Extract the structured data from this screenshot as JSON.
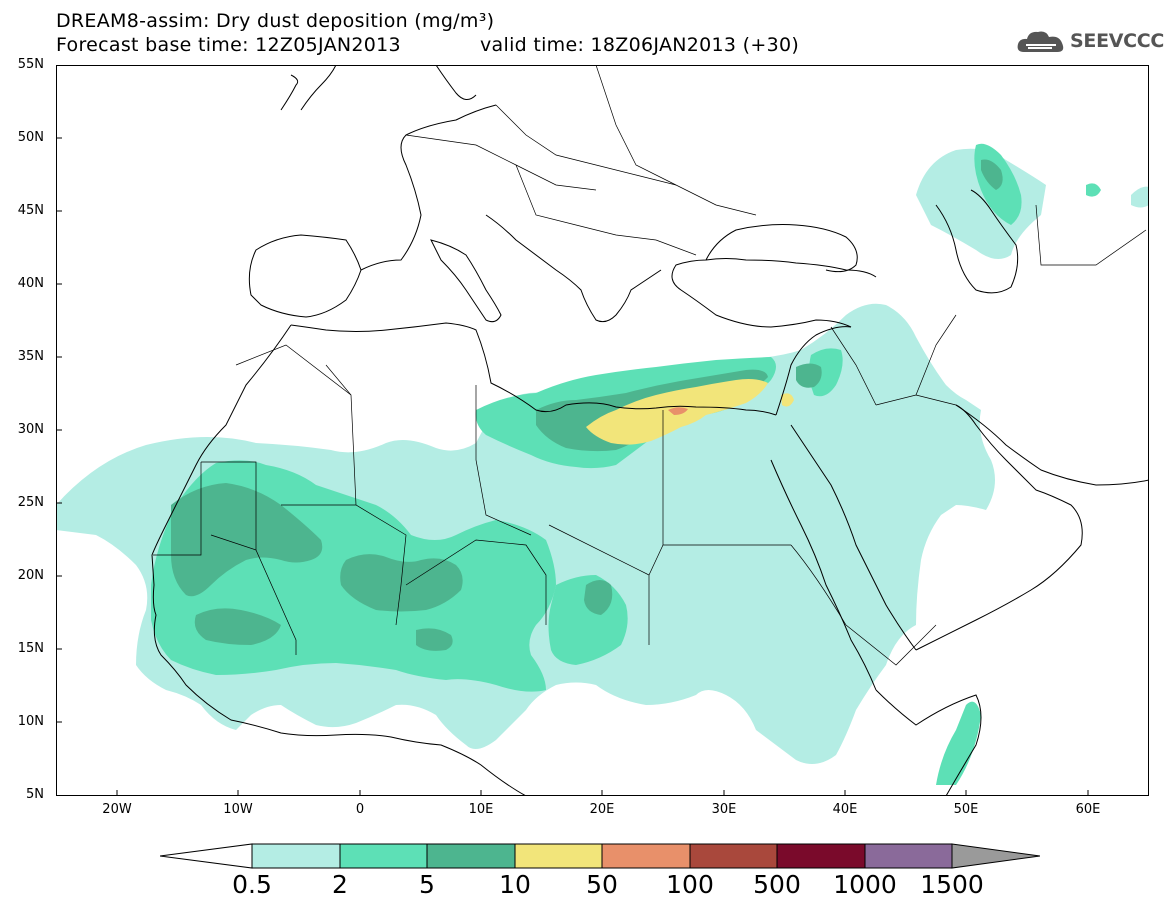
{
  "title": {
    "line1": "DREAM8-assim: Dry dust deposition (mg/m³)",
    "line2": "Forecast base time: 12Z05JAN2013",
    "valid": "valid time: 18Z06JAN2013 (+30)"
  },
  "logo": {
    "text": "SEEVCCC",
    "icon": "cloud-icon"
  },
  "map": {
    "lat_range": [
      5,
      55
    ],
    "lon_range": [
      -25,
      65
    ],
    "lat_ticks": [
      "55N",
      "50N",
      "45N",
      "40N",
      "35N",
      "30N",
      "25N",
      "20N",
      "15N",
      "10N",
      "5N"
    ],
    "lon_ticks": [
      "20W",
      "10W",
      "0",
      "10E",
      "20E",
      "30E",
      "40E",
      "50E",
      "60E"
    ]
  },
  "legend": {
    "labels": [
      "0.5",
      "2",
      "5",
      "10",
      "50",
      "100",
      "500",
      "1000",
      "1500"
    ],
    "colors": [
      "#ffffff",
      "#b4ede4",
      "#5de0b6",
      "#4db58f",
      "#f2e57a",
      "#e8906a",
      "#a9483c",
      "#7a0a2b",
      "#8a6a9a",
      "#9a9a9a"
    ]
  }
}
